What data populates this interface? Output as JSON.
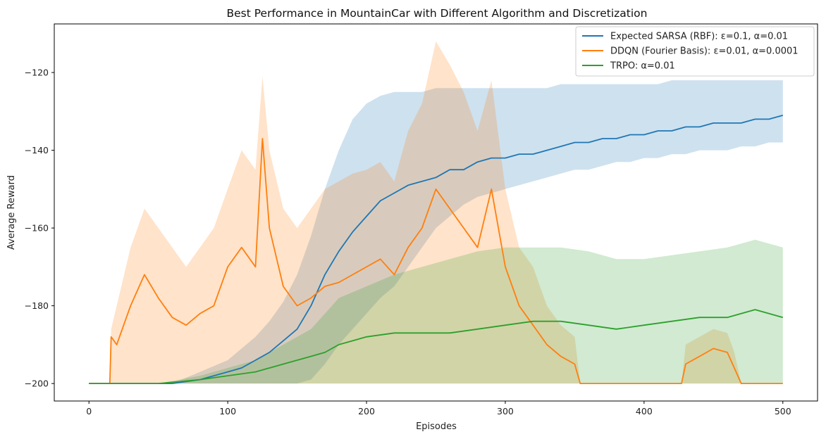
{
  "chart_data": {
    "type": "line",
    "title": "Best Performance in MountainCar with Different Algorithm and Discretization",
    "xlabel": "Episodes",
    "ylabel": "Average Reward",
    "xlim": [
      -25,
      525
    ],
    "ylim": [
      -204.5,
      -107.5
    ],
    "xticks": [
      0,
      100,
      200,
      300,
      400,
      500
    ],
    "yticks": [
      -200,
      -180,
      -160,
      -140,
      -120
    ],
    "legend_position": "top-right",
    "grid": false,
    "series": [
      {
        "name": "Expected SARSA (RBF): ε=0.1, α=0.01",
        "color": "#1f77b4",
        "x": [
          0,
          60,
          80,
          100,
          110,
          120,
          130,
          140,
          150,
          160,
          170,
          180,
          190,
          200,
          210,
          220,
          230,
          240,
          250,
          260,
          270,
          280,
          290,
          300,
          310,
          320,
          330,
          340,
          350,
          360,
          370,
          380,
          390,
          400,
          410,
          420,
          430,
          440,
          450,
          460,
          470,
          480,
          490,
          500
        ],
        "y": [
          -200,
          -200,
          -199,
          -197,
          -196,
          -194,
          -192,
          -189,
          -186,
          -180,
          -172,
          -166,
          -161,
          -157,
          -153,
          -151,
          -149,
          -148,
          -147,
          -145,
          -145,
          -143,
          -142,
          -142,
          -141,
          -141,
          -140,
          -139,
          -138,
          -138,
          -137,
          -137,
          -136,
          -136,
          -135,
          -135,
          -134,
          -134,
          -133,
          -133,
          -133,
          -132,
          -132,
          -131
        ],
        "band_low": [
          -200,
          -200,
          -200,
          -200,
          -200,
          -200,
          -200,
          -200,
          -200,
          -199,
          -195,
          -190,
          -186,
          -182,
          -178,
          -175,
          -170,
          -165,
          -160,
          -157,
          -154,
          -152,
          -151,
          -150,
          -149,
          -148,
          -147,
          -146,
          -145,
          -145,
          -144,
          -143,
          -143,
          -142,
          -142,
          -141,
          -141,
          -140,
          -140,
          -140,
          -139,
          -139,
          -138,
          -138
        ],
        "band_high": [
          -200,
          -200,
          -197,
          -194,
          -191,
          -188,
          -184,
          -179,
          -172,
          -162,
          -150,
          -140,
          -132,
          -128,
          -126,
          -125,
          -125,
          -125,
          -124,
          -124,
          -124,
          -124,
          -124,
          -124,
          -124,
          -124,
          -124,
          -123,
          -123,
          -123,
          -123,
          -123,
          -123,
          -123,
          -123,
          -122,
          -122,
          -122,
          -122,
          -122,
          -122,
          -122,
          -122,
          -122
        ]
      },
      {
        "name": "DDQN (Fourier Basis): ε=0.01, α=0.0001",
        "color": "#ff7f0e",
        "x": [
          0,
          15,
          16,
          20,
          30,
          40,
          50,
          60,
          70,
          80,
          90,
          100,
          110,
          120,
          125,
          130,
          140,
          150,
          160,
          170,
          180,
          190,
          200,
          210,
          220,
          230,
          240,
          250,
          260,
          270,
          280,
          290,
          300,
          310,
          320,
          330,
          340,
          350,
          354,
          360,
          400,
          420,
          427,
          430,
          440,
          450,
          460,
          465,
          470,
          500
        ],
        "y": [
          -200,
          -200,
          -188,
          -190,
          -180,
          -172,
          -178,
          -183,
          -185,
          -182,
          -180,
          -170,
          -165,
          -170,
          -137,
          -160,
          -175,
          -180,
          -178,
          -175,
          -174,
          -172,
          -170,
          -168,
          -172,
          -165,
          -160,
          -150,
          -155,
          -160,
          -165,
          -150,
          -170,
          -180,
          -185,
          -190,
          -193,
          -195,
          -200,
          -200,
          -200,
          -200,
          -200,
          -195,
          -193,
          -191,
          -192,
          -196,
          -200,
          -200
        ],
        "band_low": [
          -200,
          -200,
          -200,
          -200,
          -200,
          -200,
          -200,
          -200,
          -200,
          -200,
          -200,
          -200,
          -200,
          -200,
          -200,
          -200,
          -200,
          -200,
          -200,
          -200,
          -200,
          -200,
          -200,
          -200,
          -200,
          -200,
          -200,
          -200,
          -200,
          -200,
          -200,
          -200,
          -200,
          -200,
          -200,
          -200,
          -200,
          -200,
          -200,
          -200,
          -200,
          -200,
          -200,
          -200,
          -200,
          -200,
          -200,
          -200,
          -200,
          -200
        ],
        "band_high": [
          -200,
          -200,
          -186,
          -180,
          -165,
          -155,
          -160,
          -165,
          -170,
          -165,
          -160,
          -150,
          -140,
          -145,
          -121,
          -140,
          -155,
          -160,
          -155,
          -150,
          -148,
          -146,
          -145,
          -143,
          -148,
          -135,
          -128,
          -112,
          -118,
          -125,
          -135,
          -122,
          -150,
          -165,
          -170,
          -180,
          -185,
          -188,
          -200,
          -200,
          -200,
          -200,
          -200,
          -190,
          -188,
          -186,
          -187,
          -192,
          -200,
          -200
        ]
      },
      {
        "name": "TRPO: α=0.01",
        "color": "#2ca02c",
        "x": [
          0,
          50,
          80,
          100,
          120,
          140,
          160,
          170,
          180,
          200,
          220,
          240,
          260,
          280,
          300,
          320,
          340,
          360,
          380,
          400,
          420,
          440,
          460,
          480,
          500
        ],
        "y": [
          -200,
          -200,
          -199,
          -198,
          -197,
          -195,
          -193,
          -192,
          -190,
          -188,
          -187,
          -187,
          -187,
          -186,
          -185,
          -184,
          -184,
          -185,
          -186,
          -185,
          -184,
          -183,
          -183,
          -181,
          -183
        ],
        "band_low": [
          -200,
          -200,
          -200,
          -200,
          -200,
          -200,
          -200,
          -200,
          -200,
          -200,
          -200,
          -200,
          -200,
          -200,
          -200,
          -200,
          -200,
          -200,
          -200,
          -200,
          -200,
          -200,
          -200,
          -200,
          -200
        ],
        "band_high": [
          -200,
          -200,
          -198,
          -196,
          -194,
          -190,
          -186,
          -182,
          -178,
          -175,
          -172,
          -170,
          -168,
          -166,
          -165,
          -165,
          -165,
          -166,
          -168,
          -168,
          -167,
          -166,
          -165,
          -163,
          -165
        ]
      }
    ]
  }
}
